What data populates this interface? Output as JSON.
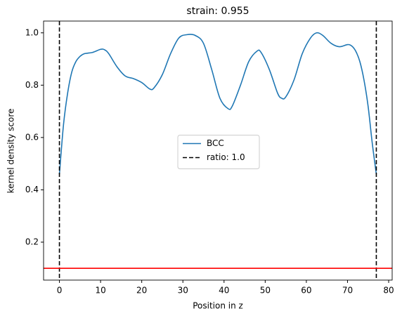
{
  "chart_data": {
    "type": "line",
    "title": "strain: 0.955",
    "xlabel": "Position in z",
    "ylabel": "kernel density score",
    "series": [
      {
        "name": "BCC",
        "color": "#1f77b4",
        "x": [
          0,
          1,
          2,
          3,
          4,
          5,
          6,
          8,
          10,
          11,
          12,
          14,
          16,
          18,
          20,
          22,
          23,
          25,
          27,
          29,
          31,
          33,
          35,
          37,
          39,
          41,
          42,
          44,
          46,
          48,
          49,
          51,
          53,
          54,
          55,
          57,
          59,
          61,
          62.5,
          64,
          66,
          68,
          70,
          71,
          72,
          73,
          74,
          75,
          76,
          77
        ],
        "values": [
          0.46,
          0.65,
          0.77,
          0.85,
          0.89,
          0.91,
          0.92,
          0.925,
          0.937,
          0.935,
          0.92,
          0.87,
          0.835,
          0.825,
          0.81,
          0.785,
          0.79,
          0.84,
          0.92,
          0.98,
          0.993,
          0.99,
          0.96,
          0.86,
          0.75,
          0.71,
          0.72,
          0.8,
          0.89,
          0.93,
          0.925,
          0.86,
          0.77,
          0.75,
          0.755,
          0.82,
          0.92,
          0.98,
          1.0,
          0.99,
          0.96,
          0.947,
          0.955,
          0.95,
          0.93,
          0.89,
          0.82,
          0.72,
          0.58,
          0.46
        ]
      }
    ],
    "vlines": {
      "name": "ratio: 1.0",
      "color": "#000000",
      "x": [
        0,
        77
      ]
    },
    "hline": {
      "y": 0.1,
      "color": "#ff0000"
    },
    "xlim": [
      -3.85,
      80.85
    ],
    "ylim": [
      0.055,
      1.045
    ],
    "xticks": [
      0,
      10,
      20,
      30,
      40,
      50,
      60,
      70,
      80
    ],
    "yticks": [
      0.2,
      0.4,
      0.6,
      0.8,
      {
        "value": 1,
        "label": "1.0"
      }
    ],
    "legend": "center"
  }
}
